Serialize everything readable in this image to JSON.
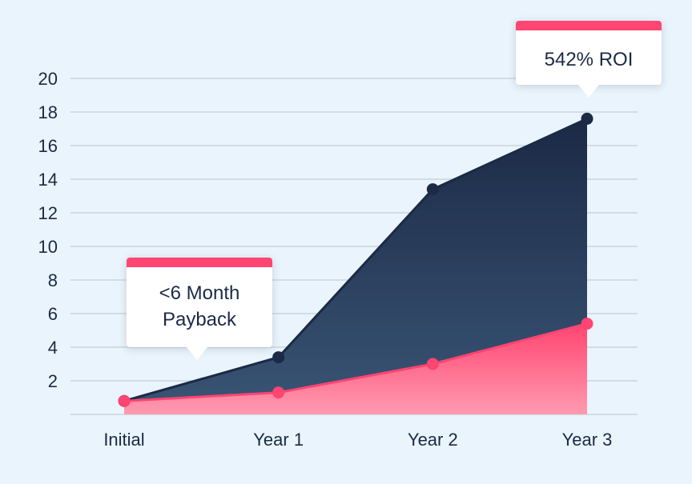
{
  "chart_data": {
    "type": "area",
    "categories": [
      "Initial",
      "Year 1",
      "Year 2",
      "Year 3"
    ],
    "series": [
      {
        "values": [
          0.8,
          3.4,
          13.4,
          17.6
        ],
        "color": "#1b2a45"
      },
      {
        "values": [
          0.8,
          1.3,
          3.0,
          5.4
        ],
        "color": "#ff4571"
      }
    ],
    "yticks": [
      "2",
      "4",
      "6",
      "8",
      "10",
      "12",
      "14",
      "16",
      "18",
      "20"
    ],
    "ylim": [
      0,
      20
    ],
    "grid": true,
    "title": "",
    "xlabel": "",
    "ylabel": "",
    "annotations": {
      "payback": {
        "lines": [
          "<6 Month",
          "Payback"
        ],
        "category": "Initial",
        "accent": "#ff4571"
      },
      "roi": {
        "lines": [
          "542% ROI"
        ],
        "category": "Year 3",
        "accent": "#ff4571"
      }
    }
  },
  "colors": {
    "background": "#e9f4fc",
    "grid": "#c9d3de",
    "text": "#1b2a45"
  }
}
